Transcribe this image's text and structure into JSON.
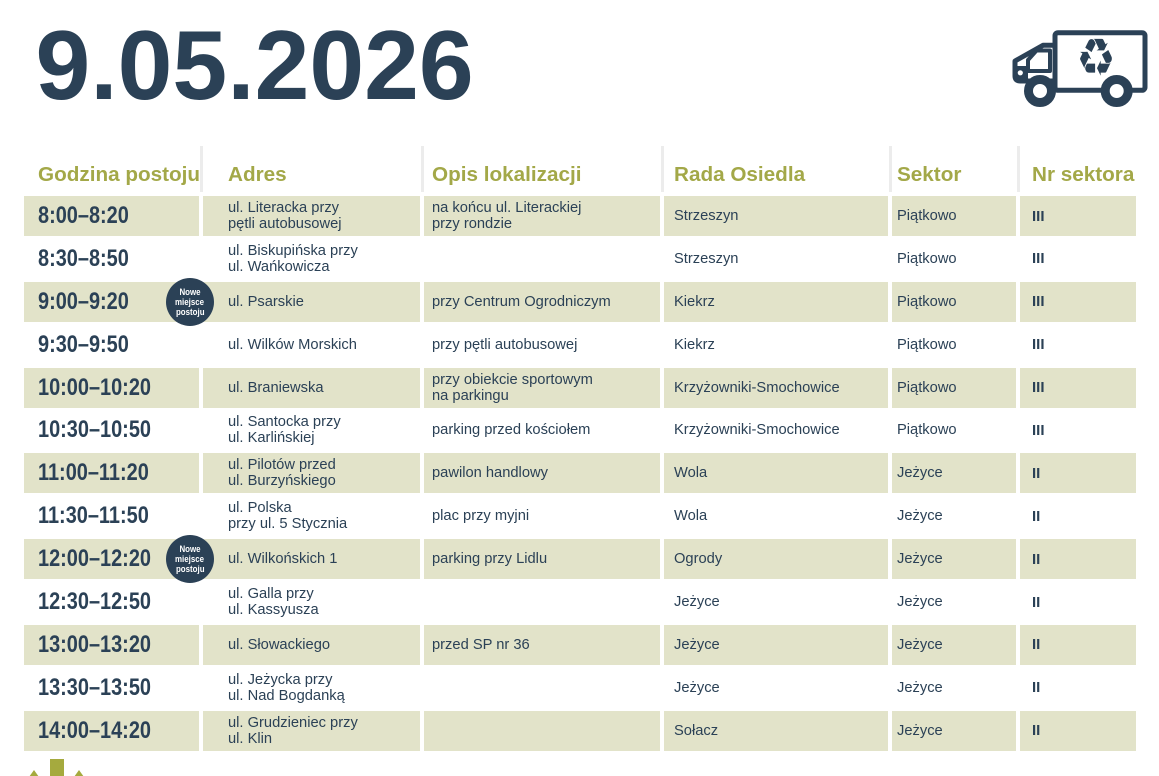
{
  "date_title": "9.05.2026",
  "badge_label_lines": [
    "Nowe",
    "miejsce",
    "postoju"
  ],
  "columns": [
    "Godzina postoju",
    "Adres",
    "Opis lokalizacji",
    "Rada Osiedla",
    "Sektor",
    "Nr sektora"
  ],
  "rows": [
    {
      "time": "8:00–8:20",
      "address": [
        "ul. Literacka przy",
        "pętli autobusowej"
      ],
      "location": [
        "na końcu ul. Literackiej",
        "przy rondzie"
      ],
      "council": "Strzeszyn",
      "sector": "Piątkowo",
      "sector_no": "III",
      "new_stop": false
    },
    {
      "time": "8:30–8:50",
      "address": [
        "ul. Biskupińska przy",
        "ul. Wańkowicza"
      ],
      "location": [],
      "council": "Strzeszyn",
      "sector": "Piątkowo",
      "sector_no": "III",
      "new_stop": false
    },
    {
      "time": "9:00–9:20",
      "address": [
        "ul. Psarskie"
      ],
      "location": [
        "przy Centrum Ogrodniczym"
      ],
      "council": "Kiekrz",
      "sector": "Piątkowo",
      "sector_no": "III",
      "new_stop": true
    },
    {
      "time": "9:30–9:50",
      "address": [
        "ul. Wilków Morskich"
      ],
      "location": [
        "przy pętli autobusowej"
      ],
      "council": "Kiekrz",
      "sector": "Piątkowo",
      "sector_no": "III",
      "new_stop": false
    },
    {
      "time": "10:00–10:20",
      "address": [
        "ul. Braniewska"
      ],
      "location": [
        "przy obiekcie sportowym",
        "na parkingu"
      ],
      "council": "Krzyżowniki-Smochowice",
      "sector": "Piątkowo",
      "sector_no": "III",
      "new_stop": false
    },
    {
      "time": "10:30–10:50",
      "address": [
        "ul. Santocka przy",
        "ul. Karlińskiej"
      ],
      "location": [
        "parking przed kościołem"
      ],
      "council": "Krzyżowniki-Smochowice",
      "sector": "Piątkowo",
      "sector_no": "III",
      "new_stop": false
    },
    {
      "time": "11:00–11:20",
      "address": [
        "ul. Pilotów przed",
        "ul. Burzyńskiego"
      ],
      "location": [
        "pawilon handlowy"
      ],
      "council": "Wola",
      "sector": "Jeżyce",
      "sector_no": "II",
      "new_stop": false
    },
    {
      "time": "11:30–11:50",
      "address": [
        "ul. Polska",
        "przy ul. 5 Stycznia"
      ],
      "location": [
        "plac przy myjni"
      ],
      "council": "Wola",
      "sector": "Jeżyce",
      "sector_no": "II",
      "new_stop": false
    },
    {
      "time": "12:00–12:20",
      "address": [
        "ul. Wilkońskich 1"
      ],
      "location": [
        "parking przy Lidlu"
      ],
      "council": "Ogrody",
      "sector": "Jeżyce",
      "sector_no": "II",
      "new_stop": true
    },
    {
      "time": "12:30–12:50",
      "address": [
        "ul. Galla przy",
        "ul. Kassyusza"
      ],
      "location": [],
      "council": "Jeżyce",
      "sector": "Jeżyce",
      "sector_no": "II",
      "new_stop": false
    },
    {
      "time": "13:00–13:20",
      "address": [
        "ul. Słowackiego"
      ],
      "location": [
        "przed SP nr 36"
      ],
      "council": "Jeżyce",
      "sector": "Jeżyce",
      "sector_no": "II",
      "new_stop": false
    },
    {
      "time": "13:30–13:50",
      "address": [
        "ul. Jeżycka przy",
        "ul. Nad Bogdanką"
      ],
      "location": [],
      "council": "Jeżyce",
      "sector": "Jeżyce",
      "sector_no": "II",
      "new_stop": false
    },
    {
      "time": "14:00–14:20",
      "address": [
        "ul. Grudzieniec przy",
        "ul. Klin"
      ],
      "location": [],
      "council": "Sołacz",
      "sector": "Jeżyce",
      "sector_no": "II",
      "new_stop": false
    }
  ],
  "colors": {
    "navy": "#2b4156",
    "olive_text": "#a3a848",
    "row_band": "#e2e3c9",
    "accent_olive": "#a5aa3e"
  }
}
